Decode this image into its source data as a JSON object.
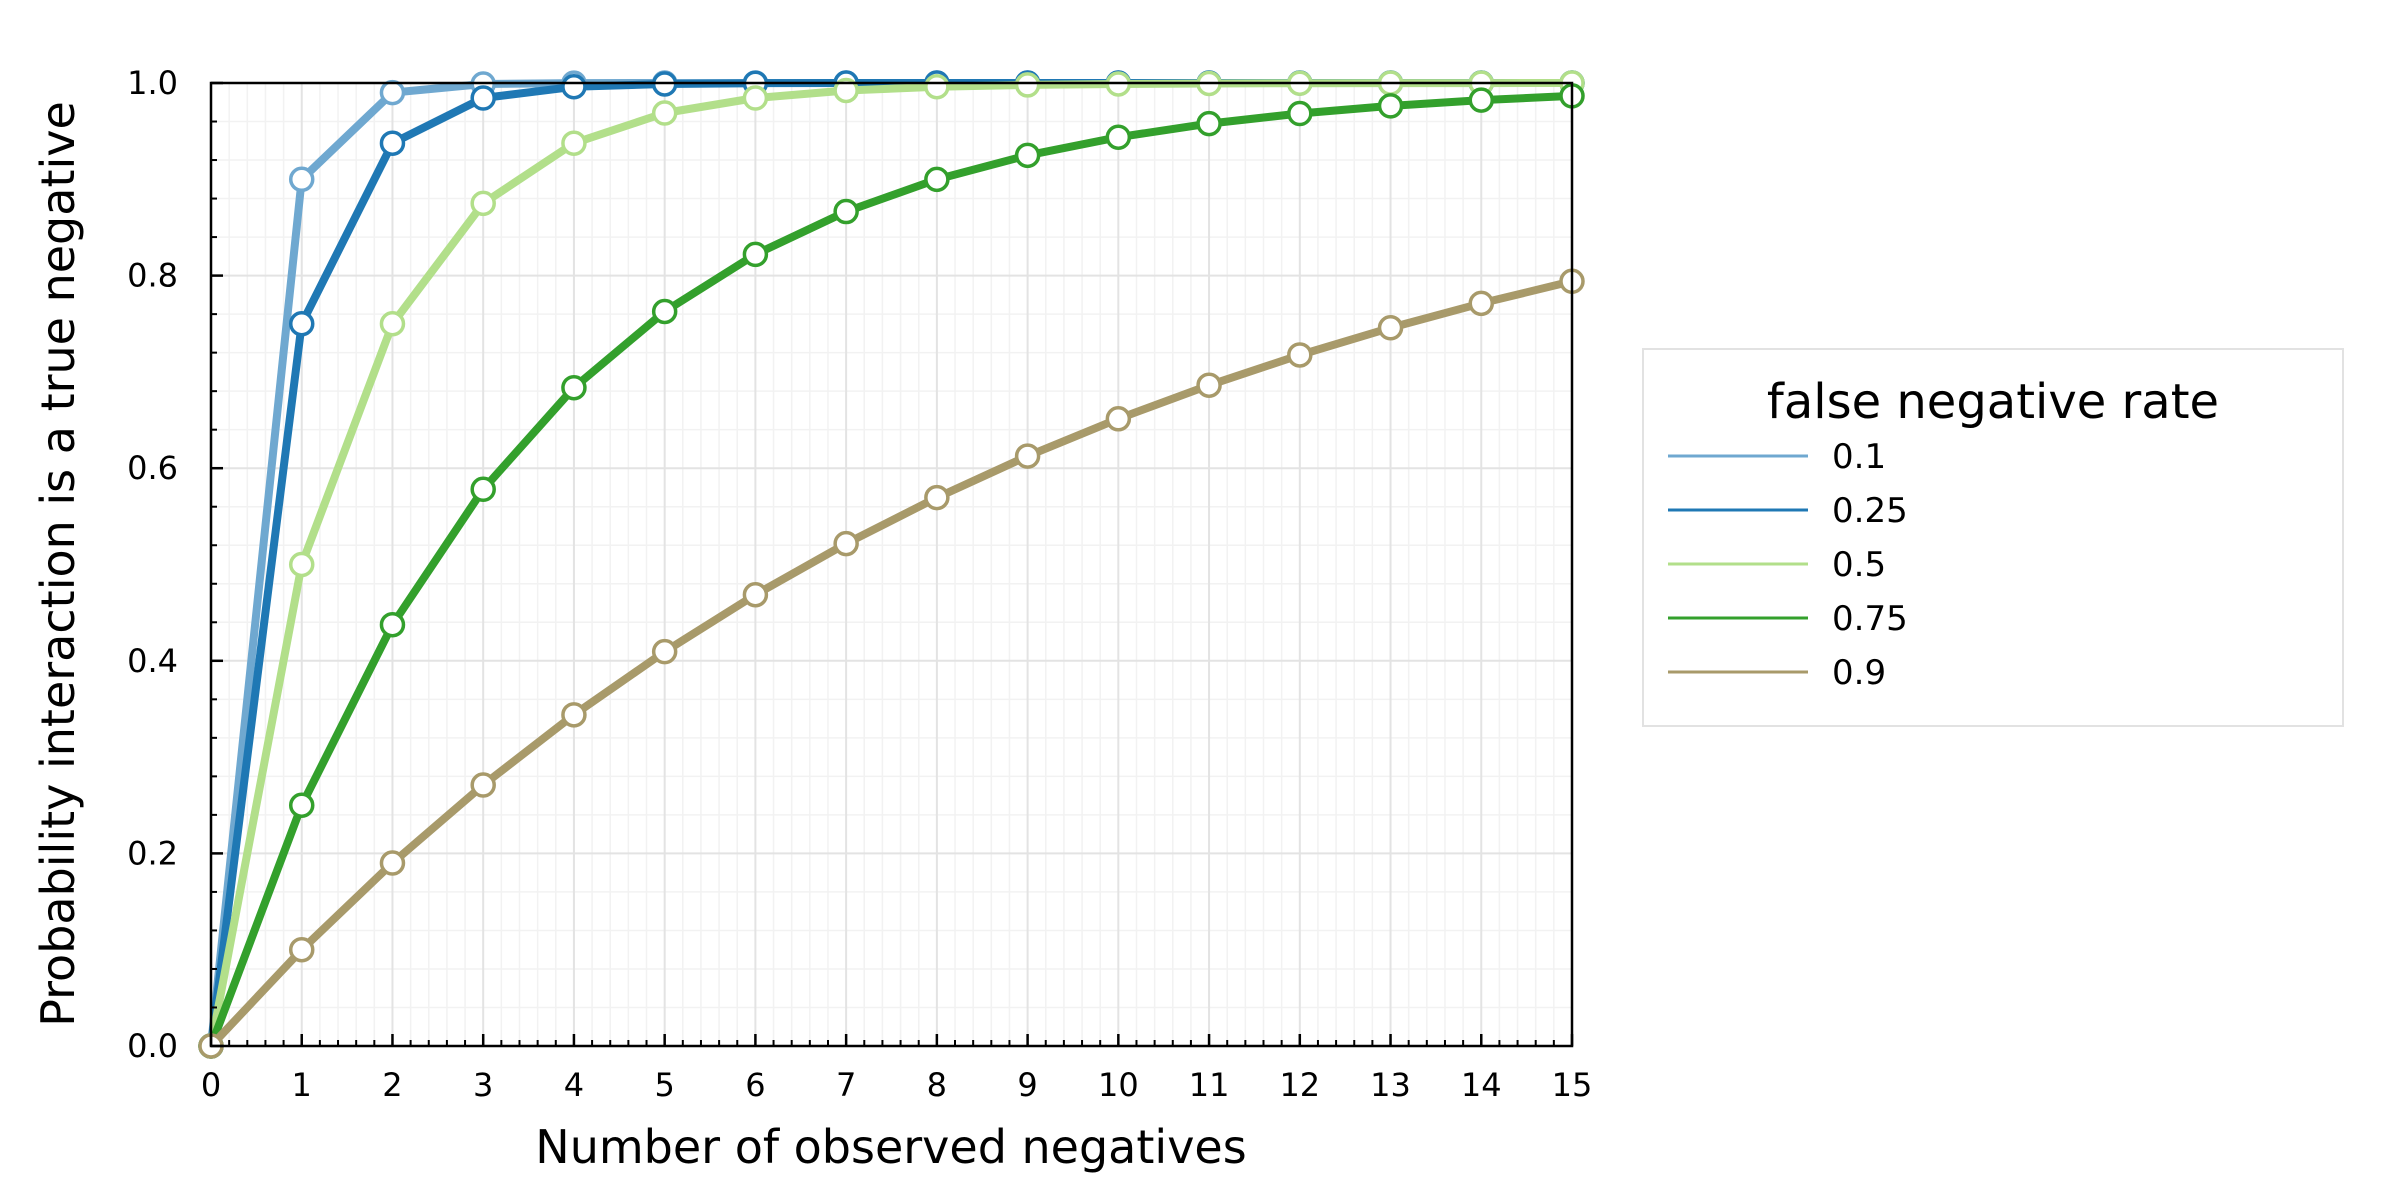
{
  "chart_data": {
    "type": "line",
    "xlabel": "Number of observed negatives",
    "ylabel": "Probability interaction is a true negative",
    "xlim": [
      0,
      15
    ],
    "ylim": [
      0,
      1
    ],
    "x": [
      0,
      1,
      2,
      3,
      4,
      5,
      6,
      7,
      8,
      9,
      10,
      11,
      12,
      13,
      14,
      15
    ],
    "xticks": [
      "0",
      "1",
      "2",
      "3",
      "4",
      "5",
      "6",
      "7",
      "8",
      "9",
      "10",
      "11",
      "12",
      "13",
      "14",
      "15"
    ],
    "yticks": [
      "0.0",
      "0.2",
      "0.4",
      "0.6",
      "0.8",
      "1.0"
    ],
    "grid": true,
    "markers": "open circle",
    "legend": {
      "title": "false negative rate",
      "position": "right, outside plot"
    },
    "series": [
      {
        "name": "0.1",
        "color": "#6fa8d0",
        "values": [
          0,
          0.9,
          0.99,
          0.999,
          0.9999,
          1.0,
          1.0,
          1.0,
          1.0,
          1.0,
          1.0,
          1.0,
          1.0,
          1.0,
          1.0,
          1.0
        ]
      },
      {
        "name": "0.25",
        "color": "#1f78b4",
        "values": [
          0,
          0.75,
          0.9375,
          0.9844,
          0.9961,
          0.999,
          0.9998,
          1.0,
          1.0,
          1.0,
          1.0,
          1.0,
          1.0,
          1.0,
          1.0,
          1.0
        ]
      },
      {
        "name": "0.5",
        "color": "#b2df8a",
        "values": [
          0,
          0.5,
          0.75,
          0.875,
          0.9375,
          0.9688,
          0.9844,
          0.9922,
          0.9961,
          0.998,
          0.999,
          0.9995,
          0.9998,
          0.9999,
          0.9999,
          1.0
        ]
      },
      {
        "name": "0.75",
        "color": "#33a02c",
        "values": [
          0,
          0.25,
          0.4375,
          0.5781,
          0.6836,
          0.7627,
          0.822,
          0.8665,
          0.8999,
          0.9249,
          0.9437,
          0.9578,
          0.9683,
          0.9762,
          0.9822,
          0.9866
        ]
      },
      {
        "name": "0.9",
        "color": "#a89a6a",
        "values": [
          0,
          0.1,
          0.19,
          0.271,
          0.3439,
          0.4095,
          0.4686,
          0.5217,
          0.5695,
          0.6126,
          0.6513,
          0.6862,
          0.7176,
          0.7458,
          0.7712,
          0.7941
        ]
      }
    ]
  }
}
